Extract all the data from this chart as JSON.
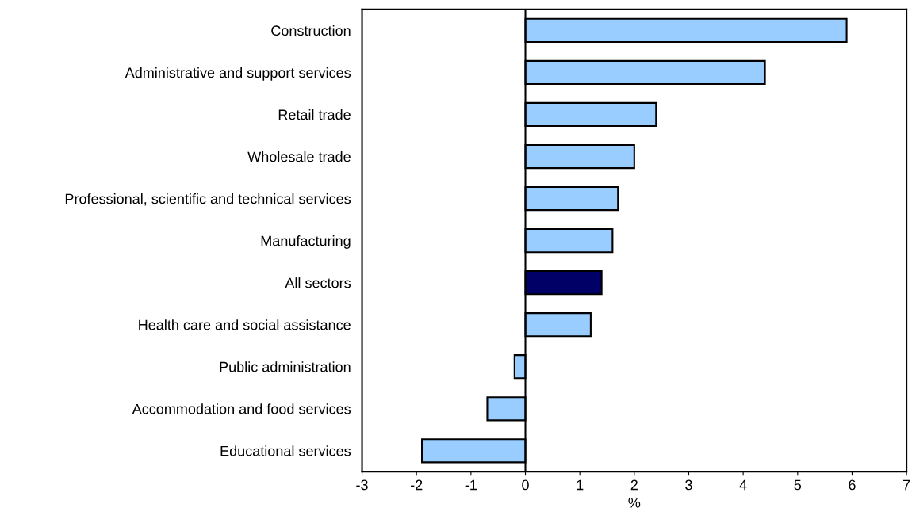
{
  "chart_data": {
    "type": "bar",
    "orientation": "horizontal",
    "xlabel": "%",
    "categories": [
      "Construction",
      "Administrative and support services",
      "Retail trade",
      "Wholesale trade",
      "Professional, scientific and technical services",
      "Manufacturing",
      "All sectors",
      "Health care and social assistance",
      "Public administration",
      "Accommodation and food services",
      "Educational services"
    ],
    "values": [
      5.9,
      4.4,
      2.4,
      2.0,
      1.7,
      1.6,
      1.4,
      1.2,
      -0.2,
      -0.7,
      -1.9
    ],
    "colors": [
      "#99ccff",
      "#99ccff",
      "#99ccff",
      "#99ccff",
      "#99ccff",
      "#99ccff",
      "#000066",
      "#99ccff",
      "#99ccff",
      "#99ccff",
      "#99ccff"
    ],
    "xlim": [
      -3,
      7
    ],
    "xticks": [
      {
        "value": -3,
        "label": "-3"
      },
      {
        "value": -2,
        "label": "-2"
      },
      {
        "value": -1,
        "label": "-1"
      },
      0,
      1,
      2,
      3,
      4,
      5,
      6,
      7
    ],
    "ref_lines": [
      {
        "axis": "x",
        "value": 0,
        "color": "#000000"
      }
    ],
    "grid": false,
    "legend": false
  }
}
